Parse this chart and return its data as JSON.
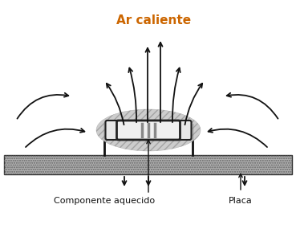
{
  "title": "Ar caliente",
  "title_color": "#cc6600",
  "label_component": "Componente aquecido",
  "label_placa": "Placa",
  "bg_color": "#ffffff",
  "arrow_color": "#111111",
  "figsize": [
    3.69,
    2.95
  ],
  "dpi": 100
}
